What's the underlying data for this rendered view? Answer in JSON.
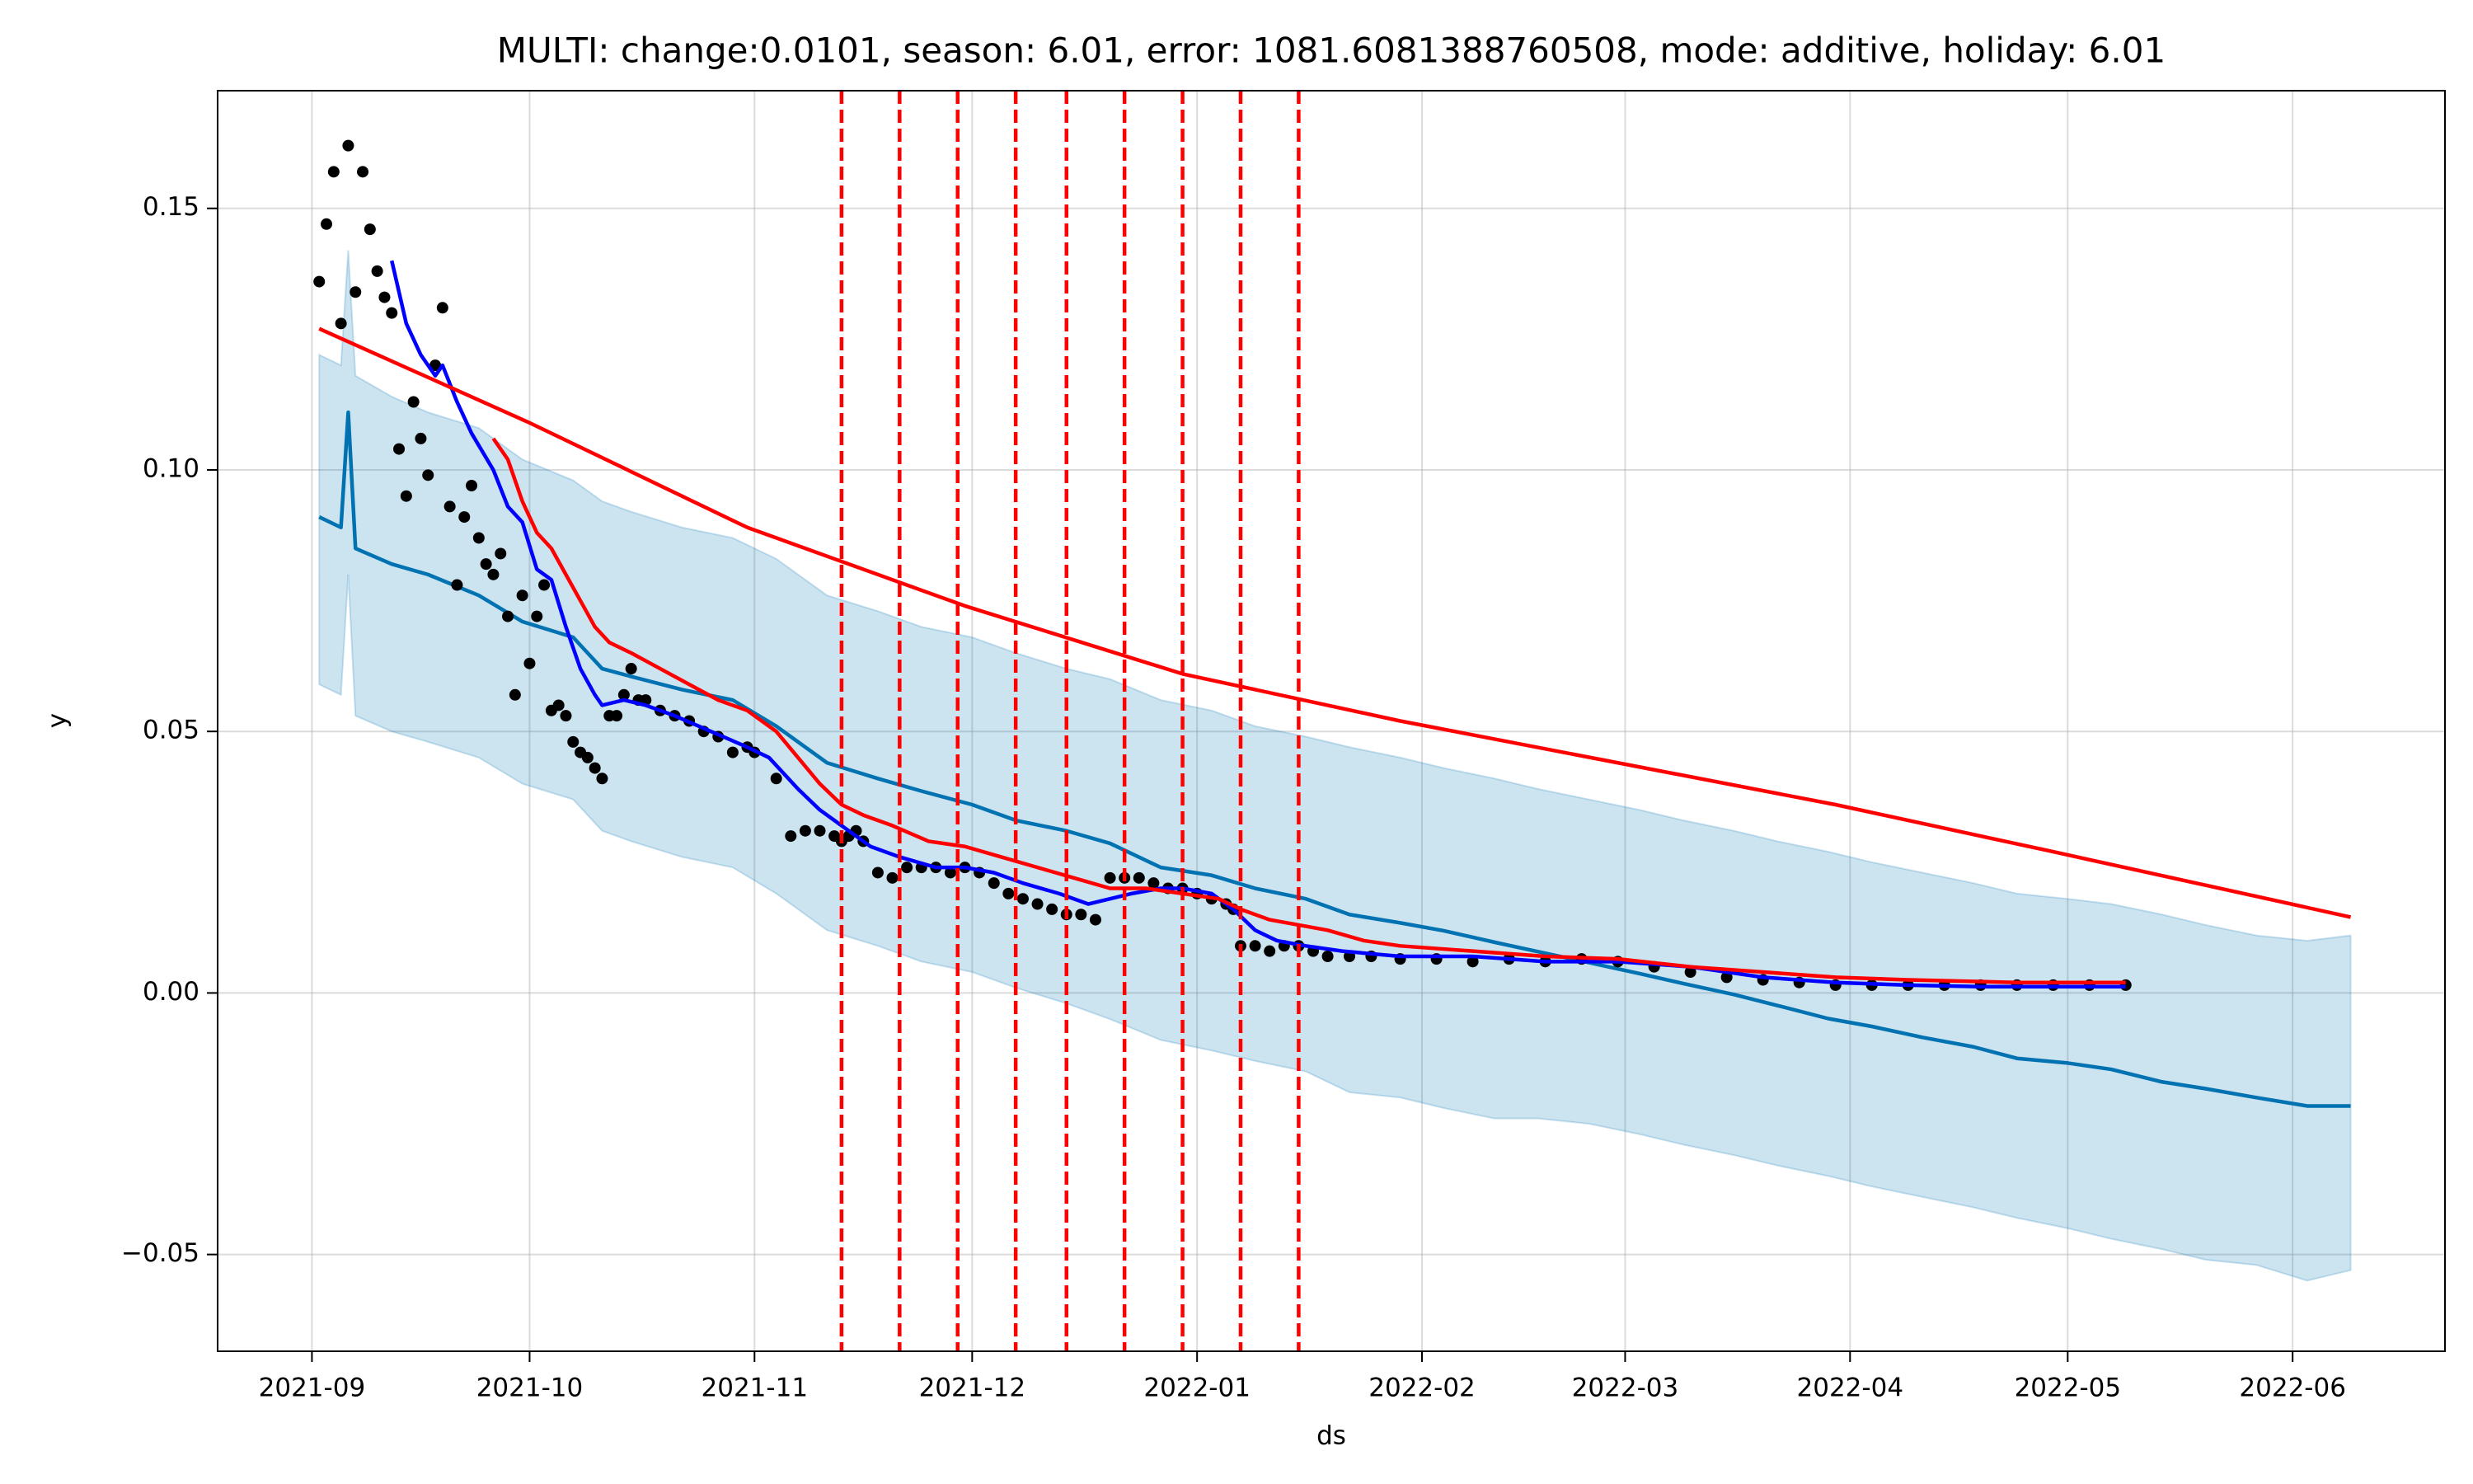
{
  "chart_data": {
    "type": "line",
    "title": "MULTI: change:0.0101, season: 6.01, error: 1081.6081388760508, mode: additive, holiday: 6.01",
    "xlabel": "ds",
    "ylabel": "y",
    "xlim": [
      -13,
      294
    ],
    "ylim": [
      -0.0685,
      0.1725
    ],
    "grid": true,
    "xticks": [
      {
        "value": 0,
        "label": "2021-09"
      },
      {
        "value": 30,
        "label": "2021-10"
      },
      {
        "value": 61,
        "label": "2021-11"
      },
      {
        "value": 91,
        "label": "2021-12"
      },
      {
        "value": 122,
        "label": "2022-01"
      },
      {
        "value": 153,
        "label": "2022-02"
      },
      {
        "value": 181,
        "label": "2022-03"
      },
      {
        "value": 212,
        "label": "2022-04"
      },
      {
        "value": 242,
        "label": "2022-05"
      },
      {
        "value": 273,
        "label": "2022-06"
      }
    ],
    "yticks": [
      {
        "value": -0.05,
        "label": "−0.05"
      },
      {
        "value": 0.0,
        "label": "0.00"
      },
      {
        "value": 0.05,
        "label": "0.05"
      },
      {
        "value": 0.1,
        "label": "0.10"
      },
      {
        "value": 0.15,
        "label": "0.15"
      }
    ],
    "series": [
      {
        "type": "band",
        "color": "#0072B2",
        "x": [
          1,
          4,
          5,
          6,
          11,
          16,
          23,
          29,
          36,
          40,
          44,
          51,
          58,
          64,
          71,
          78,
          84,
          91,
          97,
          104,
          110,
          117,
          124,
          130,
          137,
          143,
          150,
          156,
          163,
          169,
          176,
          183,
          189,
          196,
          202,
          209,
          215,
          222,
          229,
          235,
          242,
          248,
          255,
          261,
          268,
          275,
          281
        ],
        "lower": [
          0.059,
          0.057,
          0.08,
          0.053,
          0.05,
          0.048,
          0.045,
          0.04,
          0.037,
          0.031,
          0.029,
          0.026,
          0.024,
          0.019,
          0.012,
          0.009,
          0.006,
          0.004,
          0.001,
          -0.002,
          -0.005,
          -0.009,
          -0.011,
          -0.013,
          -0.015,
          -0.019,
          -0.02,
          -0.022,
          -0.024,
          -0.024,
          -0.025,
          -0.027,
          -0.029,
          -0.031,
          -0.033,
          -0.035,
          -0.037,
          -0.039,
          -0.041,
          -0.043,
          -0.045,
          -0.047,
          -0.049,
          -0.051,
          -0.052,
          -0.055,
          -0.053
        ],
        "upper": [
          0.122,
          0.12,
          0.142,
          0.118,
          0.114,
          0.111,
          0.108,
          0.102,
          0.098,
          0.094,
          0.092,
          0.089,
          0.087,
          0.083,
          0.076,
          0.073,
          0.07,
          0.068,
          0.065,
          0.062,
          0.06,
          0.056,
          0.054,
          0.051,
          0.049,
          0.047,
          0.045,
          0.043,
          0.041,
          0.039,
          0.037,
          0.035,
          0.033,
          0.031,
          0.029,
          0.027,
          0.025,
          0.023,
          0.021,
          0.019,
          0.018,
          0.017,
          0.015,
          0.013,
          0.011,
          0.01,
          0.011
        ]
      },
      {
        "type": "line",
        "color": "#0072B2",
        "x": [
          1,
          4,
          5,
          6,
          11,
          16,
          23,
          29,
          36,
          40,
          44,
          51,
          58,
          64,
          71,
          78,
          84,
          91,
          97,
          104,
          110,
          117,
          124,
          130,
          137,
          143,
          150,
          156,
          163,
          169,
          176,
          183,
          189,
          196,
          202,
          209,
          215,
          222,
          229,
          235,
          242,
          248,
          255,
          261,
          268,
          275,
          281
        ],
        "values": [
          0.091,
          0.089,
          0.111,
          0.085,
          0.082,
          0.08,
          0.076,
          0.071,
          0.068,
          0.062,
          0.0605,
          0.058,
          0.056,
          0.051,
          0.044,
          0.041,
          0.0386,
          0.036,
          0.033,
          0.031,
          0.0286,
          0.024,
          0.0225,
          0.02,
          0.018,
          0.015,
          0.0134,
          0.0119,
          0.0097,
          0.0079,
          0.0058,
          0.0037,
          0.0018,
          -0.0003,
          -0.0024,
          -0.0049,
          -0.0064,
          -0.0085,
          -0.0103,
          -0.0125,
          -0.0134,
          -0.0146,
          -0.017,
          -0.0183,
          -0.02,
          -0.0216,
          -0.0216
        ]
      },
      {
        "type": "scatter",
        "color": "black",
        "x": [
          1,
          2,
          3,
          4,
          5,
          6,
          7,
          8,
          9,
          10,
          11,
          12,
          13,
          14,
          15,
          16,
          17,
          18,
          19,
          20,
          21,
          22,
          23,
          24,
          25,
          26,
          27,
          28,
          29,
          30,
          31,
          32,
          33,
          34,
          35,
          36,
          37,
          38,
          39,
          40,
          41,
          42,
          43,
          44,
          45,
          46,
          48,
          50,
          52,
          54,
          56,
          58,
          60,
          61,
          64,
          66,
          68,
          70,
          72,
          73,
          74,
          75,
          76,
          78,
          80,
          82,
          84,
          86,
          88,
          90,
          92,
          94,
          96,
          98,
          100,
          102,
          104,
          106,
          108,
          110,
          112,
          114,
          116,
          118,
          120,
          122,
          124,
          126,
          127,
          128,
          130,
          132,
          134,
          136,
          138,
          140,
          143,
          146,
          150,
          155,
          160,
          165,
          170,
          175,
          180,
          185,
          190,
          195,
          200,
          205,
          210,
          215,
          220,
          225,
          230,
          235,
          240,
          245,
          250
        ],
        "values": [
          0.136,
          0.147,
          0.157,
          0.128,
          0.162,
          0.134,
          0.157,
          0.146,
          0.138,
          0.133,
          0.13,
          0.104,
          0.095,
          0.113,
          0.106,
          0.099,
          0.12,
          0.131,
          0.093,
          0.078,
          0.091,
          0.097,
          0.087,
          0.082,
          0.08,
          0.084,
          0.072,
          0.057,
          0.076,
          0.063,
          0.072,
          0.078,
          0.054,
          0.055,
          0.053,
          0.048,
          0.046,
          0.045,
          0.043,
          0.041,
          0.053,
          0.053,
          0.057,
          0.062,
          0.056,
          0.056,
          0.054,
          0.053,
          0.052,
          0.05,
          0.049,
          0.046,
          0.047,
          0.046,
          0.041,
          0.03,
          0.031,
          0.031,
          0.03,
          0.029,
          0.03,
          0.031,
          0.029,
          0.023,
          0.022,
          0.024,
          0.024,
          0.024,
          0.023,
          0.024,
          0.023,
          0.021,
          0.019,
          0.018,
          0.017,
          0.016,
          0.015,
          0.015,
          0.014,
          0.022,
          0.022,
          0.022,
          0.021,
          0.02,
          0.02,
          0.019,
          0.018,
          0.017,
          0.016,
          0.009,
          0.009,
          0.008,
          0.009,
          0.009,
          0.008,
          0.007,
          0.007,
          0.007,
          0.0065,
          0.0065,
          0.006,
          0.0065,
          0.006,
          0.0065,
          0.006,
          0.005,
          0.004,
          0.003,
          0.0025,
          0.002,
          0.0015,
          0.0015,
          0.0015,
          0.0015,
          0.0015,
          0.0015,
          0.0015,
          0.0015,
          0.0015
        ]
      },
      {
        "type": "line",
        "color": "blue",
        "x": [
          11,
          13,
          15,
          17,
          18,
          20,
          22,
          25,
          27,
          29,
          31,
          33,
          35,
          37,
          39,
          40,
          43,
          46,
          50,
          55,
          60,
          63,
          67,
          70,
          73,
          77,
          81,
          86,
          90,
          94,
          98,
          103,
          107,
          110,
          113,
          117,
          120,
          124,
          127,
          130,
          133,
          137,
          142,
          150,
          160,
          170,
          180,
          190,
          200,
          210,
          220,
          230,
          250
        ],
        "values": [
          0.14,
          0.128,
          0.122,
          0.118,
          0.12,
          0.113,
          0.107,
          0.1,
          0.093,
          0.09,
          0.081,
          0.079,
          0.07,
          0.062,
          0.057,
          0.055,
          0.056,
          0.055,
          0.053,
          0.05,
          0.047,
          0.045,
          0.039,
          0.035,
          0.032,
          0.028,
          0.026,
          0.024,
          0.024,
          0.023,
          0.021,
          0.019,
          0.017,
          0.018,
          0.019,
          0.02,
          0.02,
          0.019,
          0.016,
          0.012,
          0.01,
          0.009,
          0.008,
          0.007,
          0.007,
          0.006,
          0.006,
          0.005,
          0.003,
          0.002,
          0.0015,
          0.0012,
          0.0012
        ]
      },
      {
        "type": "line",
        "color": "red",
        "x": [
          25,
          27,
          29,
          31,
          33,
          35,
          37,
          39,
          41,
          44,
          48,
          52,
          56,
          60,
          64,
          67,
          70,
          73,
          76,
          80,
          85,
          90,
          95,
          100,
          105,
          110,
          115,
          120,
          125,
          128,
          132,
          136,
          140,
          145,
          150,
          160,
          170,
          180,
          190,
          200,
          210,
          220,
          235,
          250
        ],
        "values": [
          0.106,
          0.102,
          0.094,
          0.088,
          0.085,
          0.08,
          0.075,
          0.07,
          0.067,
          0.065,
          0.062,
          0.059,
          0.056,
          0.054,
          0.05,
          0.045,
          0.04,
          0.036,
          0.034,
          0.032,
          0.029,
          0.028,
          0.026,
          0.024,
          0.022,
          0.02,
          0.02,
          0.019,
          0.018,
          0.016,
          0.014,
          0.013,
          0.012,
          0.01,
          0.009,
          0.008,
          0.007,
          0.0065,
          0.005,
          0.004,
          0.003,
          0.0025,
          0.002,
          0.002
        ]
      },
      {
        "type": "line",
        "color": "red",
        "x": [
          1,
          30,
          60,
          90,
          120,
          150,
          180,
          210,
          240,
          281
        ],
        "values": [
          0.127,
          0.109,
          0.089,
          0.074,
          0.061,
          0.052,
          0.044,
          0.036,
          0.027,
          0.0145
        ]
      }
    ],
    "vlines": {
      "color": "red",
      "x": [
        73,
        81,
        89,
        97,
        104,
        112,
        120,
        128,
        136
      ]
    }
  }
}
